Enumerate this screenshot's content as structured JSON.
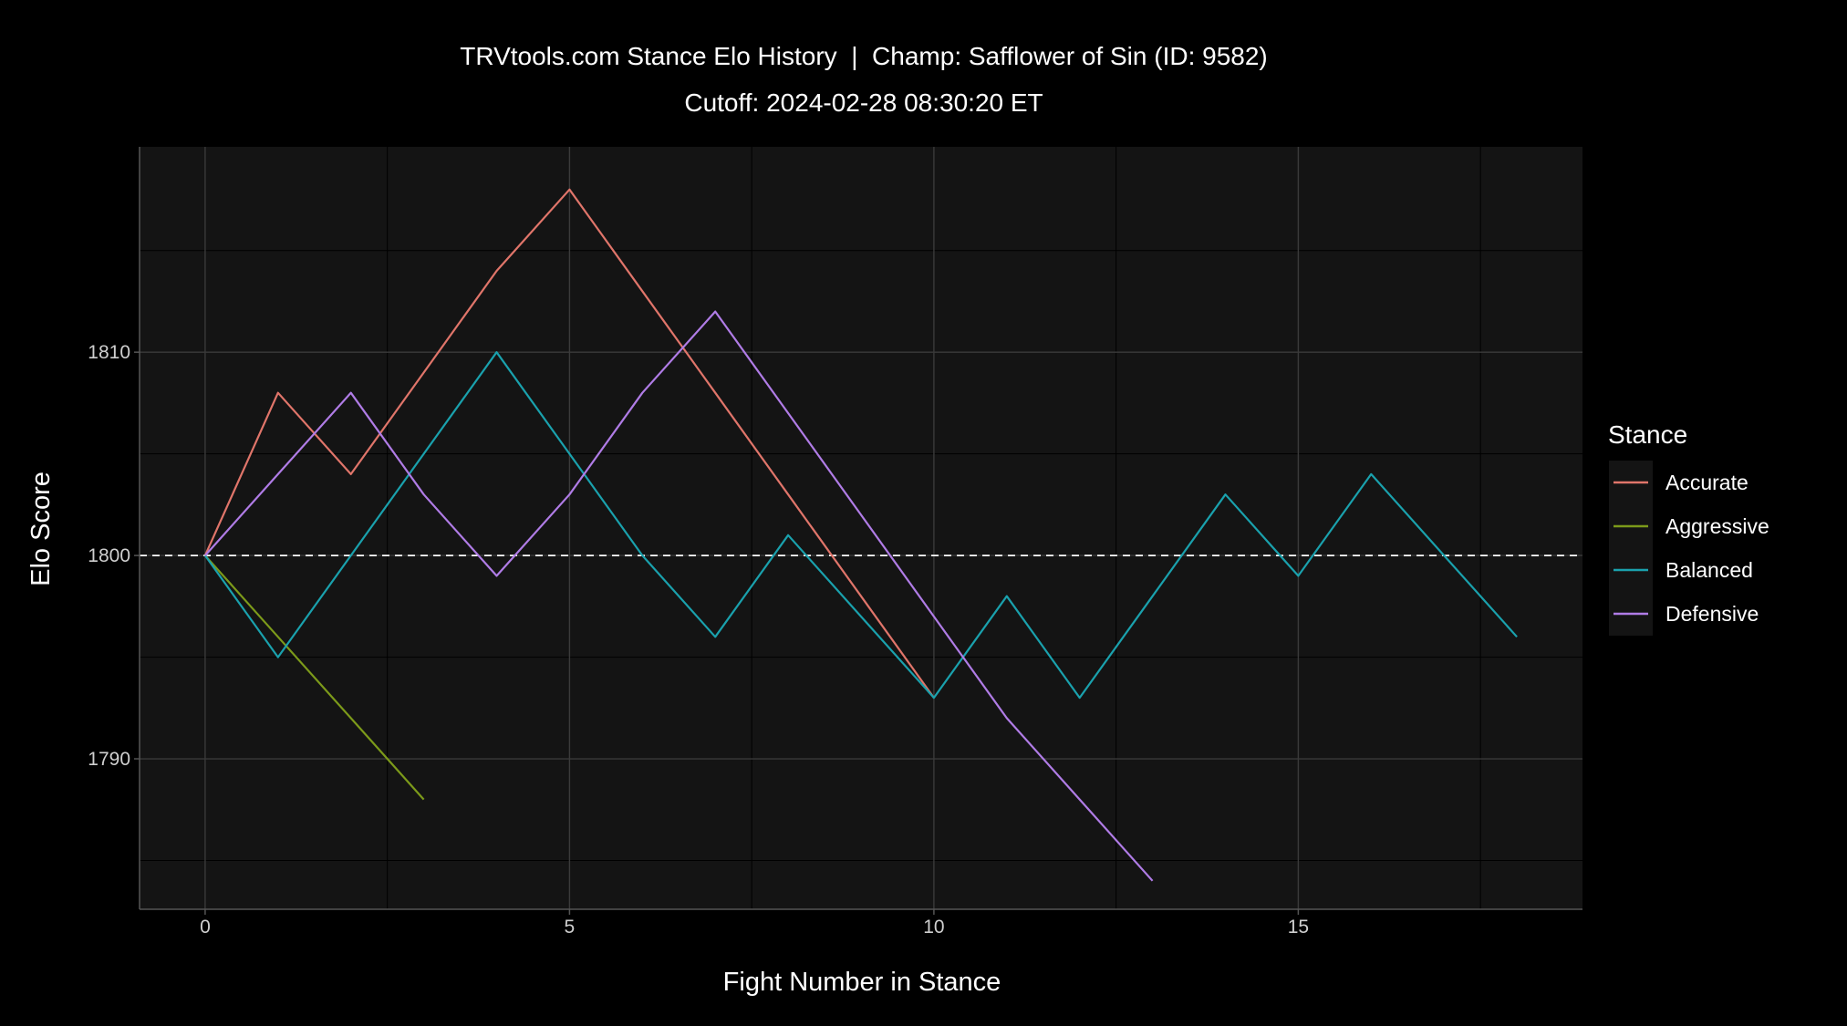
{
  "chart_data": {
    "type": "line",
    "title": "TRVtools.com Stance Elo History  |  Champ: Safflower of Sin (ID: 9582)",
    "subtitle": "Cutoff: 2024-02-28 08:30:20 ET",
    "xlabel": "Fight Number in Stance",
    "ylabel": "Elo Score",
    "xlim": [
      -0.9,
      18.9
    ],
    "ylim": [
      1782.6,
      1820.1
    ],
    "x_ticks": [
      0,
      5,
      10,
      15
    ],
    "y_ticks": [
      1790,
      1800,
      1810
    ],
    "reference_line": {
      "y": 1800,
      "style": "dashed",
      "color": "#ffffff"
    },
    "grid": true,
    "legend": {
      "title": "Stance",
      "position": "right"
    },
    "series": [
      {
        "name": "Accurate",
        "color": "#e0756a",
        "x": [
          0,
          1,
          2,
          3,
          4,
          5,
          6,
          7,
          8,
          9,
          10
        ],
        "y": [
          1800,
          1808,
          1804,
          1809,
          1814,
          1818,
          1813,
          1808,
          1803,
          1798,
          1793
        ]
      },
      {
        "name": "Aggressive",
        "color": "#7c9a1a",
        "x": [
          0,
          1,
          2,
          3
        ],
        "y": [
          1800,
          1796,
          1792,
          1788
        ]
      },
      {
        "name": "Balanced",
        "color": "#1aa1ad",
        "x": [
          0,
          1,
          2,
          3,
          4,
          5,
          6,
          7,
          8,
          9,
          10,
          11,
          12,
          13,
          14,
          15,
          16,
          17,
          18
        ],
        "y": [
          1800,
          1795,
          1800,
          1805,
          1810,
          1805,
          1800,
          1796,
          1801,
          1797,
          1793,
          1798,
          1793,
          1798,
          1803,
          1799,
          1804,
          1800,
          1796
        ]
      },
      {
        "name": "Defensive",
        "color": "#b07ce6",
        "x": [
          0,
          1,
          2,
          3,
          4,
          5,
          6,
          7,
          8,
          9,
          10,
          11,
          12,
          13
        ],
        "y": [
          1800,
          1804,
          1808,
          1803,
          1799,
          1803,
          1808,
          1812,
          1807,
          1802,
          1797,
          1792,
          1788,
          1784
        ]
      }
    ]
  }
}
